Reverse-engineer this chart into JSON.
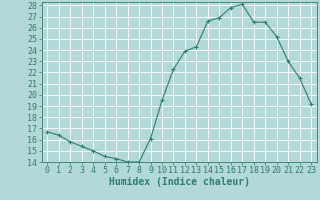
{
  "x": [
    0,
    1,
    2,
    3,
    4,
    5,
    6,
    7,
    8,
    9,
    10,
    11,
    12,
    13,
    14,
    15,
    16,
    17,
    18,
    19,
    20,
    21,
    22,
    23
  ],
  "y": [
    16.7,
    16.4,
    15.8,
    15.4,
    15.0,
    14.5,
    14.3,
    14.0,
    14.0,
    16.1,
    19.5,
    22.3,
    23.9,
    24.3,
    26.6,
    26.9,
    27.8,
    28.1,
    26.5,
    26.5,
    25.2,
    23.0,
    21.5,
    19.2
  ],
  "line_color": "#2e7d6e",
  "marker": "+",
  "bg_color": "#b2d8d8",
  "grid_color": "#ffffff",
  "xlabel": "Humidex (Indice chaleur)",
  "ylim": [
    14,
    28
  ],
  "xlim_min": -0.5,
  "xlim_max": 23.5,
  "yticks": [
    14,
    15,
    16,
    17,
    18,
    19,
    20,
    21,
    22,
    23,
    24,
    25,
    26,
    27,
    28
  ],
  "xticks": [
    0,
    1,
    2,
    3,
    4,
    5,
    6,
    7,
    8,
    9,
    10,
    11,
    12,
    13,
    14,
    15,
    16,
    17,
    18,
    19,
    20,
    21,
    22,
    23
  ],
  "tick_color": "#2e7d6e",
  "label_color": "#2e7d6e",
  "font_size": 6,
  "xlabel_fontsize": 7
}
